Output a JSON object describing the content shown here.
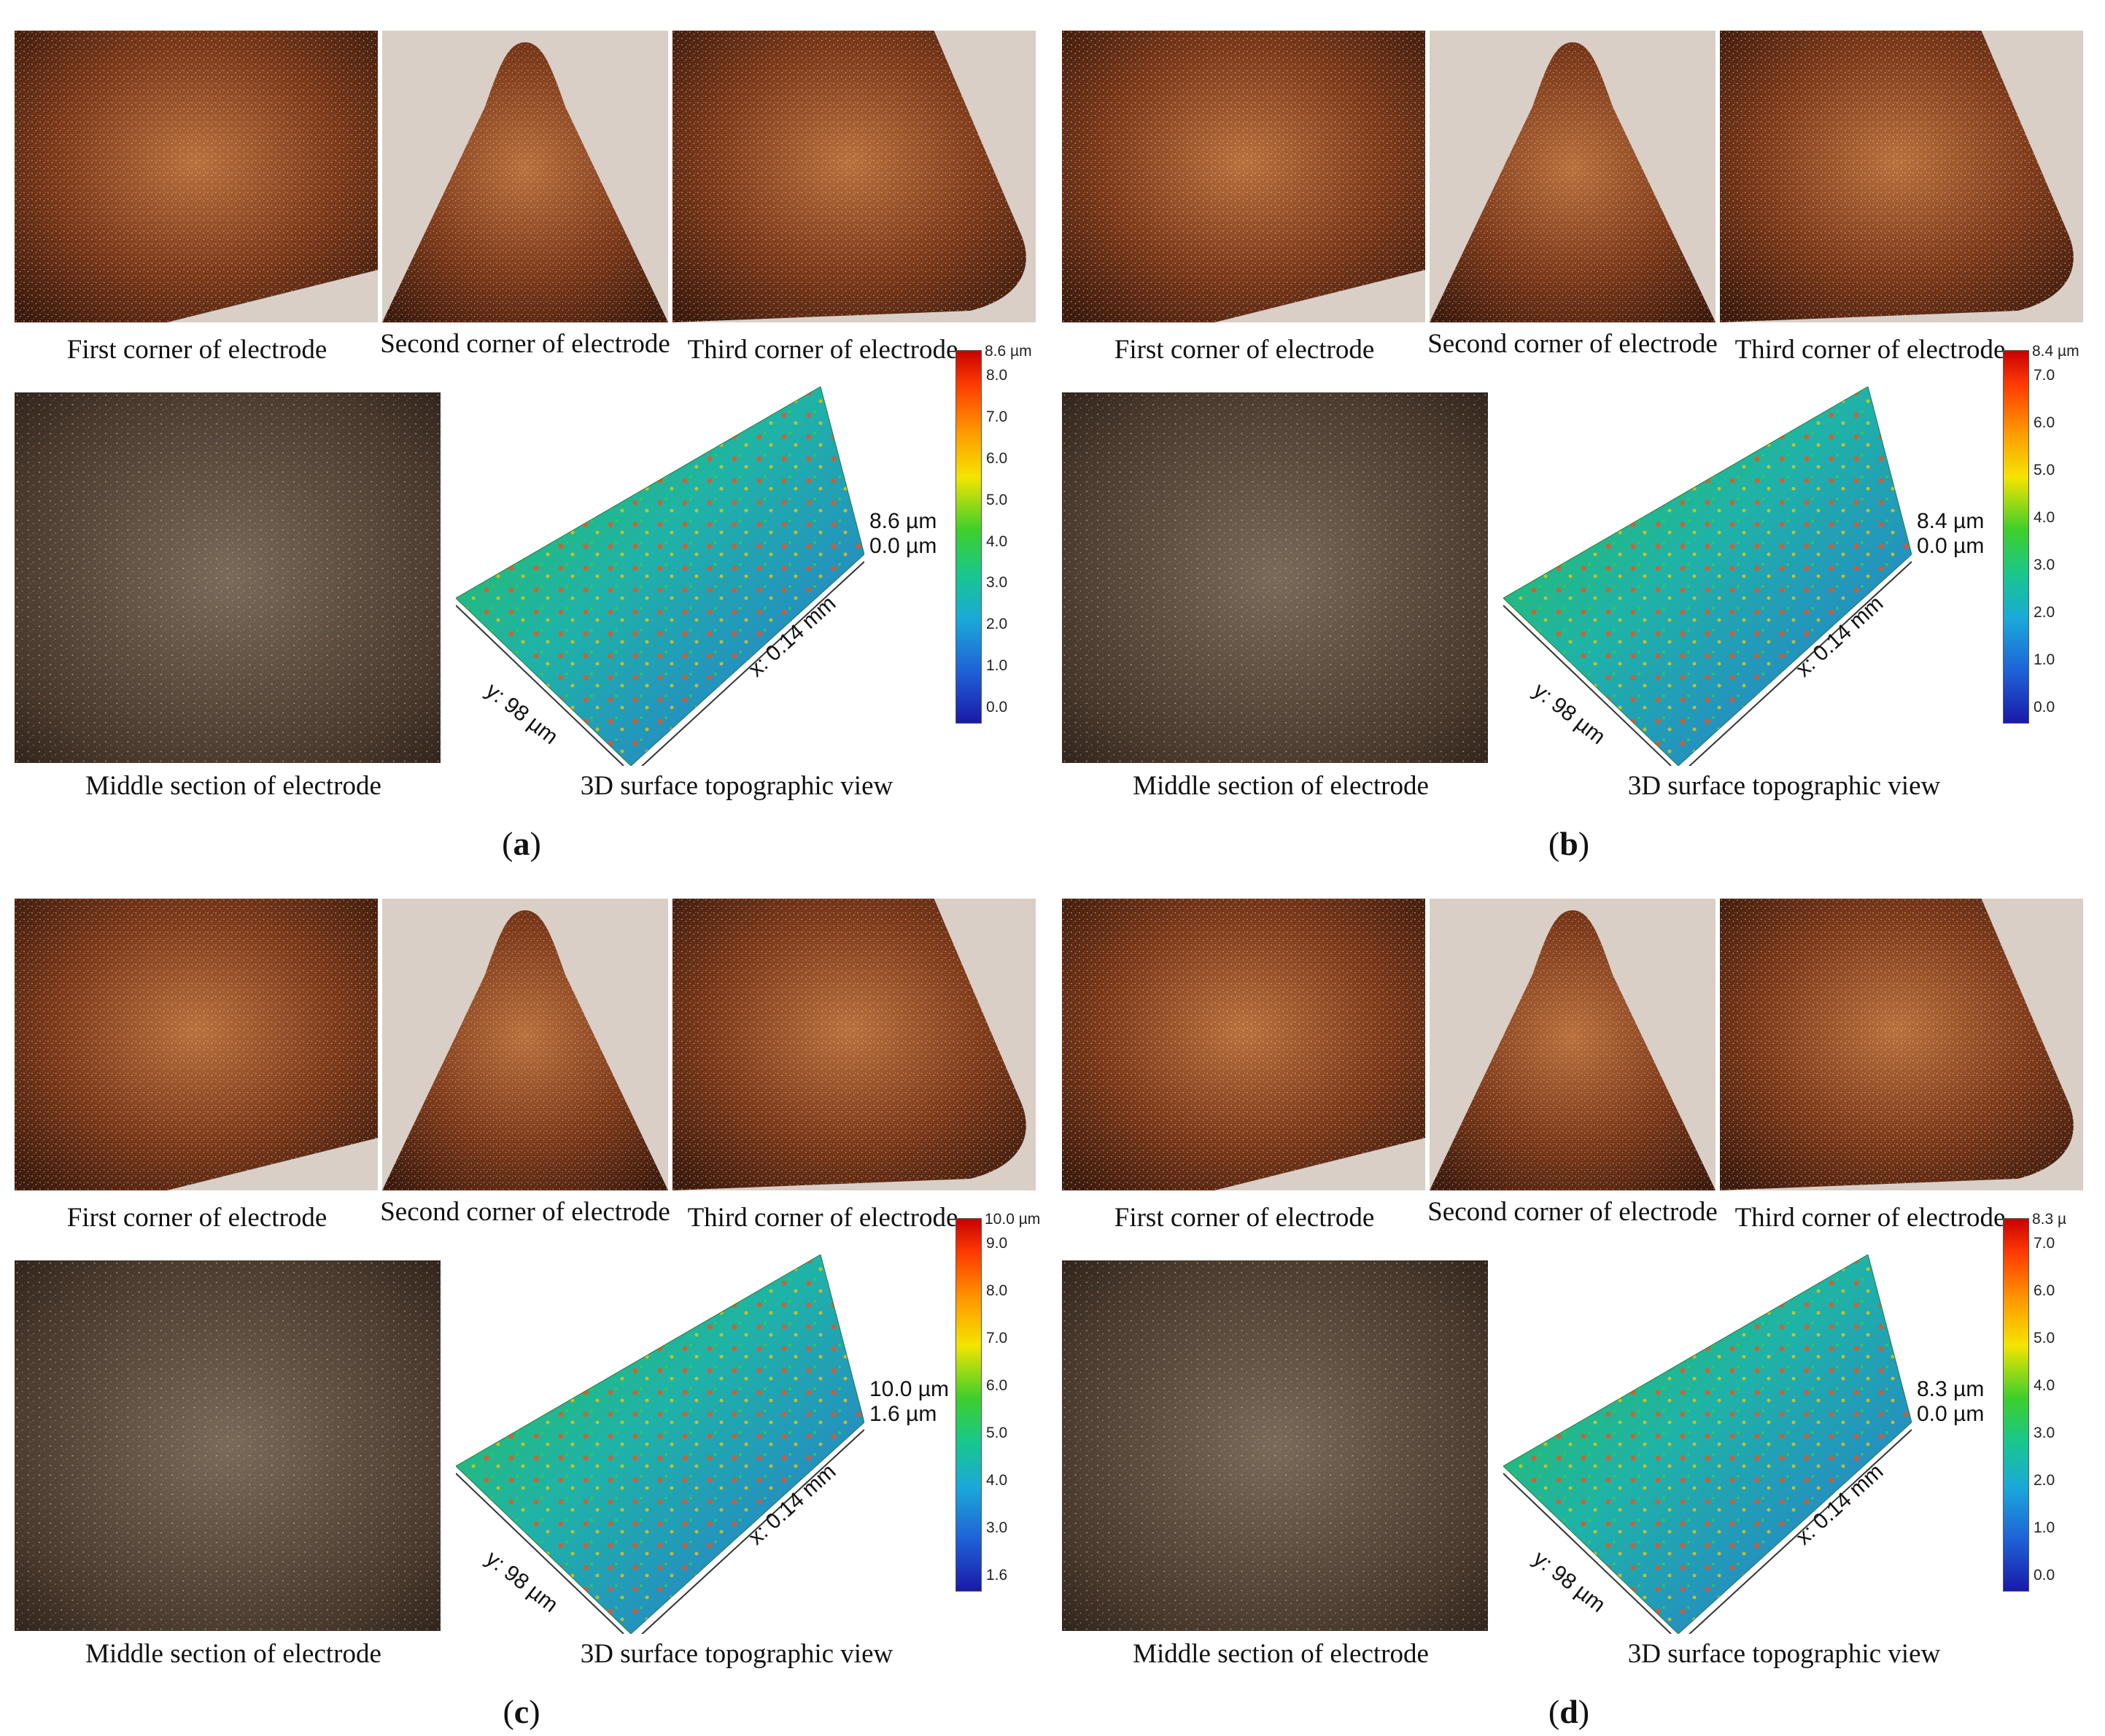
{
  "labels": {
    "first": "First corner of electrode",
    "second": "Second corner of electrode",
    "third": "Third corner of electrode",
    "middle": "Middle section of electrode",
    "view3d": "3D surface topographic view",
    "x_axis": "x: 0.14 mm",
    "y_axis": "y: 98 µm"
  },
  "panels": [
    {
      "id": "a",
      "letter": "a",
      "scale_top": "8.6 µm",
      "height_max": "8.6 µm",
      "height_min": "0.0 µm",
      "ticks": [
        "8.0",
        "7.0",
        "6.0",
        "5.0",
        "4.0",
        "3.0",
        "2.0",
        "1.0",
        "0.0"
      ]
    },
    {
      "id": "b",
      "letter": "b",
      "scale_top": "8.4 µm",
      "height_max": "8.4 µm",
      "height_min": "0.0 µm",
      "ticks": [
        "7.0",
        "6.0",
        "5.0",
        "4.0",
        "3.0",
        "2.0",
        "1.0",
        "0.0"
      ]
    },
    {
      "id": "c",
      "letter": "c",
      "scale_top": "10.0 µm",
      "height_max": "10.0 µm",
      "height_min": "1.6 µm",
      "ticks": [
        "9.0",
        "8.0",
        "7.0",
        "6.0",
        "5.0",
        "4.0",
        "3.0",
        "1.6"
      ]
    },
    {
      "id": "d",
      "letter": "d",
      "scale_top": "8.3 µ",
      "height_max": "8.3 µm",
      "height_min": "0.0 µm",
      "ticks": [
        "7.0",
        "6.0",
        "5.0",
        "4.0",
        "3.0",
        "2.0",
        "1.0",
        "0.0"
      ]
    }
  ]
}
